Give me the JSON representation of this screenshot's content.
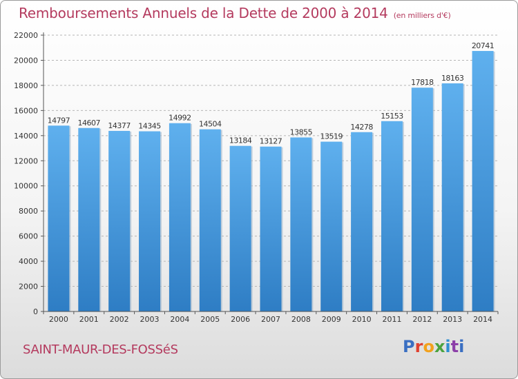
{
  "chart_data": {
    "type": "bar",
    "title": "Remboursements Annuels de la Dette de 2000 à 2014",
    "subtitle": "(en milliers d'€)",
    "categories": [
      "2000",
      "2001",
      "2002",
      "2003",
      "2004",
      "2005",
      "2006",
      "2007",
      "2008",
      "2009",
      "2010",
      "2011",
      "2012",
      "2013",
      "2014"
    ],
    "values": [
      14797,
      14607,
      14377,
      14345,
      14992,
      14504,
      13184,
      13127,
      13855,
      13519,
      14278,
      15153,
      17818,
      18163,
      20741
    ],
    "xlabel": "",
    "ylabel": "",
    "ylim": [
      0,
      22000
    ],
    "yticks": [
      0,
      2000,
      4000,
      6000,
      8000,
      10000,
      12000,
      14000,
      16000,
      18000,
      20000,
      22000
    ],
    "grid": "horizontal-dashed",
    "bar_color": "#4a9fe0"
  },
  "footer": {
    "city": "SAINT-MAUR-DES-FOSSéS",
    "logo_letters": [
      "P",
      "r",
      "o",
      "x",
      "i",
      "t",
      "i"
    ]
  }
}
